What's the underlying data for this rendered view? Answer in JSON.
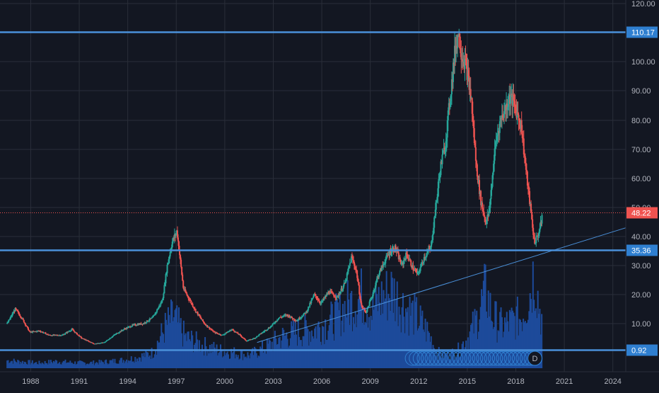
{
  "chart_data": {
    "type": "candlestick",
    "x_axis": {
      "labels": [
        "1988",
        "1991",
        "1994",
        "1997",
        "2000",
        "2003",
        "2006",
        "2009",
        "2012",
        "2015",
        "2018",
        "2021",
        "2024"
      ],
      "range": [
        1986.6,
        2025.3
      ]
    },
    "y_axis": {
      "labels": [
        "120.00",
        "100.00",
        "90.00",
        "80.00",
        "70.00",
        "60.00",
        "50.00",
        "40.00",
        "30.00",
        "20.00",
        "10.00"
      ],
      "ticks": [
        120,
        100,
        90,
        80,
        70,
        60,
        50,
        40,
        30,
        20,
        10
      ],
      "range": [
        0,
        121
      ],
      "scale": "approximately linear, slightly compressed at top"
    },
    "price_series": [
      [
        1987.0,
        10
      ],
      [
        1987.5,
        15
      ],
      [
        1987.9,
        12
      ],
      [
        1988.4,
        7
      ],
      [
        1989.0,
        7.5
      ],
      [
        1989.6,
        6
      ],
      [
        1990.4,
        6
      ],
      [
        1991.0,
        8
      ],
      [
        1991.6,
        5
      ],
      [
        1992.4,
        3
      ],
      [
        1993.0,
        3.5
      ],
      [
        1993.6,
        6
      ],
      [
        1994.2,
        8
      ],
      [
        1994.8,
        9.5
      ],
      [
        1995.4,
        10
      ],
      [
        1996.0,
        12
      ],
      [
        1996.6,
        18
      ],
      [
        1996.9,
        30
      ],
      [
        1997.2,
        38
      ],
      [
        1997.5,
        42
      ],
      [
        1997.7,
        32
      ],
      [
        1997.9,
        22
      ],
      [
        1998.3,
        18
      ],
      [
        1998.7,
        14
      ],
      [
        1999.2,
        10
      ],
      [
        1999.8,
        7
      ],
      [
        2000.3,
        6
      ],
      [
        2000.9,
        8
      ],
      [
        2001.4,
        6
      ],
      [
        2001.8,
        4
      ],
      [
        2002.3,
        5
      ],
      [
        2002.8,
        7
      ],
      [
        2003.3,
        9
      ],
      [
        2003.8,
        12
      ],
      [
        2004.3,
        13
      ],
      [
        2004.9,
        11
      ],
      [
        2005.5,
        14
      ],
      [
        2006.0,
        20
      ],
      [
        2006.4,
        17
      ],
      [
        2006.9,
        21
      ],
      [
        2007.4,
        19
      ],
      [
        2007.9,
        24
      ],
      [
        2008.3,
        33
      ],
      [
        2008.6,
        28
      ],
      [
        2008.9,
        16
      ],
      [
        2009.2,
        14
      ],
      [
        2009.6,
        20
      ],
      [
        2009.9,
        26
      ],
      [
        2010.3,
        31
      ],
      [
        2010.7,
        35
      ],
      [
        2011.0,
        36
      ],
      [
        2011.4,
        30
      ],
      [
        2011.7,
        34
      ],
      [
        2012.1,
        29
      ],
      [
        2012.4,
        27
      ],
      [
        2012.8,
        33
      ],
      [
        2013.2,
        36
      ],
      [
        2013.5,
        50
      ],
      [
        2013.8,
        64
      ],
      [
        2014.1,
        72
      ],
      [
        2014.4,
        88
      ],
      [
        2014.7,
        104
      ],
      [
        2014.9,
        110
      ],
      [
        2015.1,
        103
      ],
      [
        2015.4,
        98
      ],
      [
        2015.7,
        87
      ],
      [
        2016.0,
        65
      ],
      [
        2016.3,
        52
      ],
      [
        2016.6,
        45
      ],
      [
        2016.8,
        48
      ],
      [
        2017.2,
        72
      ],
      [
        2017.5,
        80
      ],
      [
        2017.8,
        84
      ],
      [
        2018.1,
        88
      ],
      [
        2018.4,
        85
      ],
      [
        2018.8,
        78
      ],
      [
        2019.1,
        62
      ],
      [
        2019.4,
        48
      ],
      [
        2019.6,
        38
      ],
      [
        2019.8,
        40
      ],
      [
        2020.0,
        44
      ],
      [
        2020.1,
        48.22
      ]
    ],
    "volume_series": [
      [
        1987.0,
        1.5
      ],
      [
        1988.0,
        1.2
      ],
      [
        1989.0,
        1
      ],
      [
        1990.0,
        1.3
      ],
      [
        1991.0,
        1.1
      ],
      [
        1992.0,
        1
      ],
      [
        1993.0,
        1.2
      ],
      [
        1994.0,
        1.5
      ],
      [
        1995.0,
        2
      ],
      [
        1996.0,
        3
      ],
      [
        1996.8,
        8
      ],
      [
        1997.3,
        10
      ],
      [
        1998.0,
        6
      ],
      [
        1999.0,
        4.5
      ],
      [
        2000.0,
        3.5
      ],
      [
        2001.0,
        3
      ],
      [
        2002.0,
        2.5
      ],
      [
        2003.0,
        4
      ],
      [
        2004.0,
        6
      ],
      [
        2005.0,
        7
      ],
      [
        2006.0,
        7.5
      ],
      [
        2007.0,
        9
      ],
      [
        2008.0,
        12
      ],
      [
        2009.0,
        14
      ],
      [
        2009.5,
        11
      ],
      [
        2010.0,
        13
      ],
      [
        2010.8,
        15
      ],
      [
        2011.5,
        12
      ],
      [
        2012.3,
        10
      ],
      [
        2013.0,
        7
      ],
      [
        2013.6,
        3
      ],
      [
        2014.0,
        2.5
      ],
      [
        2014.8,
        3
      ],
      [
        2015.5,
        6
      ],
      [
        2016.0,
        9
      ],
      [
        2016.6,
        15
      ],
      [
        2017.0,
        10
      ],
      [
        2017.6,
        8
      ],
      [
        2018.2,
        9
      ],
      [
        2018.8,
        10
      ],
      [
        2019.3,
        14
      ],
      [
        2019.6,
        19
      ],
      [
        2019.9,
        12
      ],
      [
        2020.1,
        9
      ]
    ],
    "horizontal_lines": [
      {
        "value": 110.17,
        "label": "110.17"
      },
      {
        "value": 35.36,
        "label": "35.36"
      },
      {
        "value": 0.92,
        "label": "0.92"
      }
    ],
    "trendline": {
      "start": [
        2002.5,
        3.5
      ],
      "end": [
        2025.3,
        43
      ]
    },
    "last_price": {
      "value": 48.22,
      "label": "48.22"
    },
    "event_marker_label": "D",
    "colors": {
      "background": "#131722",
      "grid": "#2a2e39",
      "up": "#26a69a",
      "down": "#ef5350",
      "volume": "#1d4a9a",
      "level_line": "#4a90d9",
      "label_bg": "#2f7fd0",
      "last_price_bg": "#ef5350",
      "axis_text": "#b2b5be"
    },
    "grid": true
  }
}
